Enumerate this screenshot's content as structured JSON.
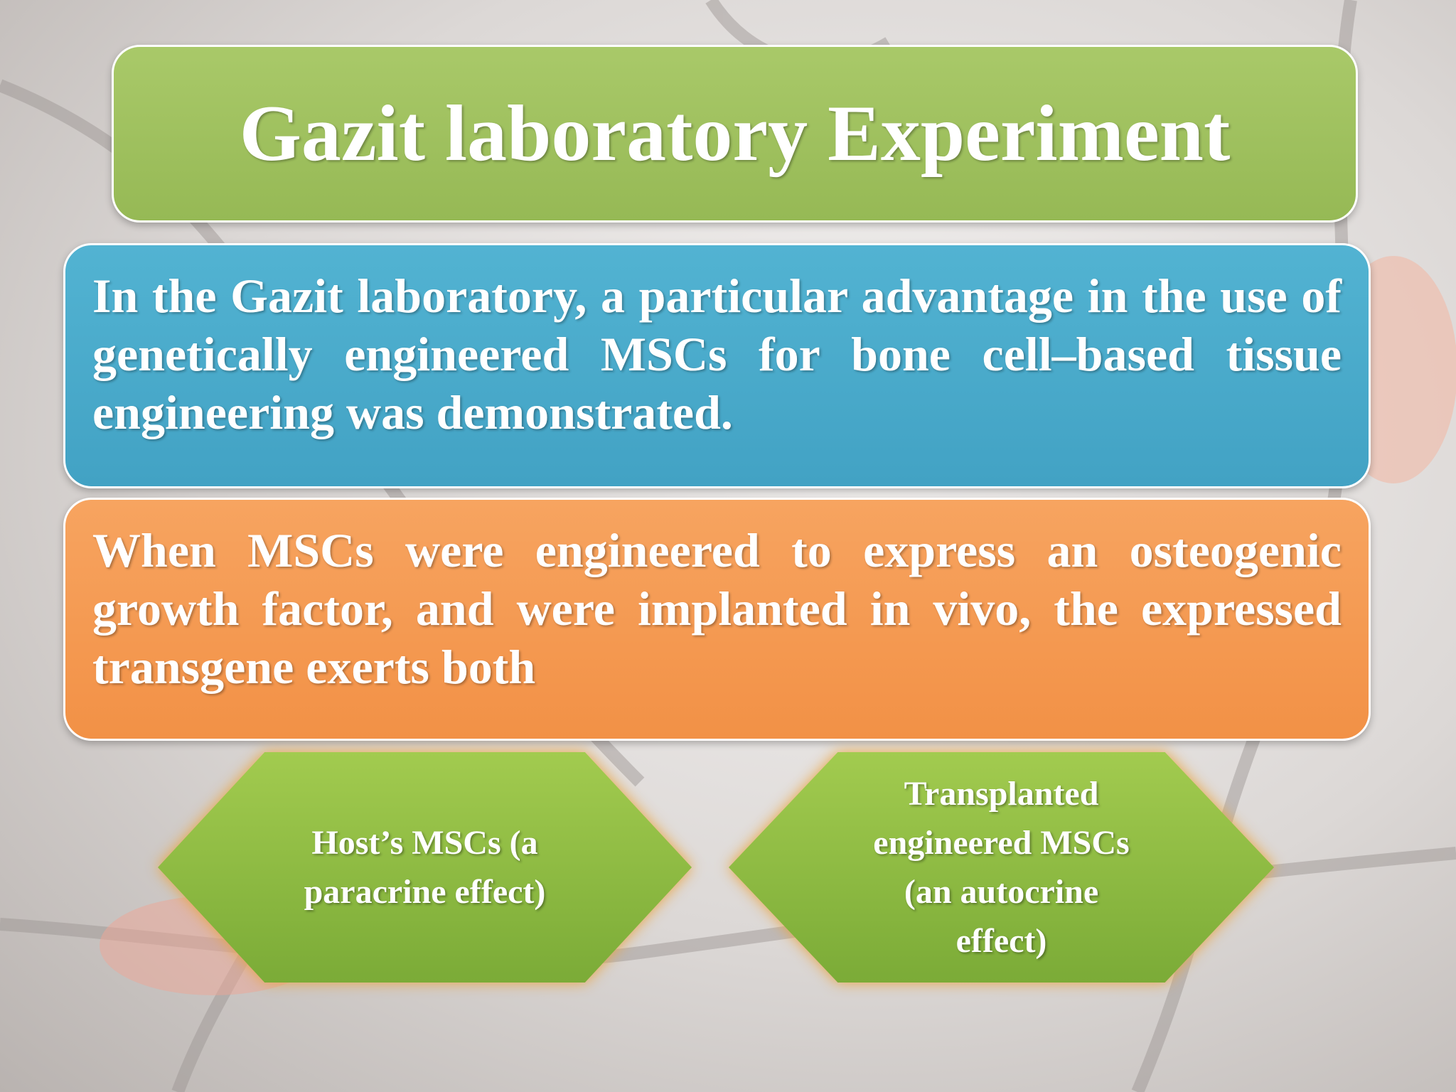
{
  "title": "Gazit laboratory Experiment",
  "blocks": [
    {
      "text": "In the Gazit laboratory, a particular advantage in the use of genetically engineered MSCs for bone cell–based tissue engineering was demonstrated."
    },
    {
      "text": "When MSCs were engineered to express an osteogenic growth factor, and were implanted in vivo, the expressed transgene exerts both"
    }
  ],
  "effects": [
    {
      "text": "Host’s MSCs (a paracrine effect)"
    },
    {
      "text": "Transplanted engineered MSCs (an autocrine effect)"
    }
  ]
}
